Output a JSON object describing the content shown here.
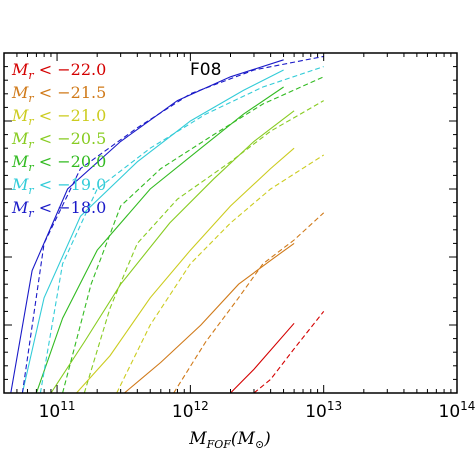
{
  "chart_data": {
    "type": "line",
    "title": "",
    "panel_label": "F08",
    "xlabel": "M_FOF(M_⊙)",
    "ylabel": "",
    "xscale": "log",
    "xlim": [
      40000000000,
      100000000000000
    ],
    "ylim": [
      0,
      1
    ],
    "x_ticks": [
      {
        "value": 100000000000,
        "label": "10^11"
      },
      {
        "value": 1000000000000,
        "label": "10^12"
      },
      {
        "value": 10000000000000,
        "label": "10^13"
      },
      {
        "value": 100000000000000,
        "label": "10^14"
      }
    ],
    "y_tick_labels_visible": false,
    "grid": false,
    "legend_position": "top-left",
    "line_styles": {
      "solid": "model",
      "dashed": "F08"
    },
    "series": [
      {
        "name": "M_r < -22.0",
        "color": "#d40000",
        "solid": {
          "x": [
            2000000000000,
            3000000000000,
            6000000000000
          ],
          "y": [
            0.0,
            0.07,
            0.205
          ]
        },
        "dashed": {
          "x": [
            3000000000000,
            4000000000000,
            6000000000000,
            10000000000000
          ],
          "y": [
            0.0,
            0.04,
            0.13,
            0.24
          ]
        }
      },
      {
        "name": "M_r < -21.5",
        "color": "#d07a1a",
        "solid": {
          "x": [
            320000000000,
            600000000000,
            1200000000000,
            2300000000000,
            4000000000000,
            6000000000000
          ],
          "y": [
            0.0,
            0.09,
            0.2,
            0.32,
            0.39,
            0.44
          ]
        },
        "dashed": {
          "x": [
            750000000000,
            1300000000000,
            2300000000000,
            3500000000000,
            6000000000000,
            10000000000000
          ],
          "y": [
            0.0,
            0.15,
            0.28,
            0.38,
            0.45,
            0.53
          ]
        }
      },
      {
        "name": "M_r < -21.0",
        "color": "#cccc20",
        "solid": {
          "x": [
            140000000000,
            250000000000,
            500000000000,
            1000000000000,
            2000000000000,
            4000000000000,
            6000000000000
          ],
          "y": [
            0.0,
            0.11,
            0.28,
            0.42,
            0.55,
            0.66,
            0.72
          ]
        },
        "dashed": {
          "x": [
            280000000000,
            500000000000,
            1000000000000,
            2000000000000,
            4000000000000,
            10000000000000
          ],
          "y": [
            0.0,
            0.2,
            0.38,
            0.5,
            0.6,
            0.7
          ]
        }
      },
      {
        "name": "M_r < -20.5",
        "color": "#88cc22",
        "solid": {
          "x": [
            90000000000,
            160000000000,
            300000000000,
            700000000000,
            1500000000000,
            3000000000000,
            6000000000000
          ],
          "y": [
            0.0,
            0.15,
            0.32,
            0.5,
            0.63,
            0.74,
            0.83
          ]
        },
        "dashed": {
          "x": [
            160000000000,
            250000000000,
            400000000000,
            800000000000,
            2000000000000,
            4000000000000,
            10000000000000
          ],
          "y": [
            0.0,
            0.25,
            0.44,
            0.57,
            0.68,
            0.77,
            0.86
          ]
        }
      },
      {
        "name": "M_r < -20.0",
        "color": "#33bb22",
        "solid": {
          "x": [
            70000000000,
            110000000000,
            200000000000,
            500000000000,
            1200000000000,
            2500000000000,
            5000000000000
          ],
          "y": [
            0.0,
            0.22,
            0.42,
            0.6,
            0.72,
            0.82,
            0.9
          ]
        },
        "dashed": {
          "x": [
            110000000000,
            180000000000,
            300000000000,
            600000000000,
            1500000000000,
            3500000000000,
            10000000000000
          ],
          "y": [
            0.0,
            0.32,
            0.55,
            0.66,
            0.76,
            0.85,
            0.93
          ]
        }
      },
      {
        "name": "M_r < -19.0",
        "color": "#33ccd8",
        "solid": {
          "x": [
            55000000000,
            80000000000,
            150000000000,
            400000000000,
            1000000000000,
            2500000000000,
            5000000000000
          ],
          "y": [
            0.0,
            0.28,
            0.52,
            0.68,
            0.8,
            0.89,
            0.95
          ]
        },
        "dashed": {
          "x": [
            75000000000,
            110000000000,
            200000000000,
            500000000000,
            1300000000000,
            3500000000000,
            10000000000000
          ],
          "y": [
            0.0,
            0.38,
            0.6,
            0.72,
            0.82,
            0.9,
            0.96
          ]
        }
      },
      {
        "name": "M_r < -18.0",
        "color": "#1a1ac8",
        "solid": {
          "x": [
            45000000000,
            65000000000,
            120000000000,
            300000000000,
            800000000000,
            2000000000000,
            5000000000000
          ],
          "y": [
            0.0,
            0.36,
            0.6,
            0.74,
            0.86,
            0.93,
            0.98
          ]
        },
        "dashed": {
          "x": [
            55000000000,
            80000000000,
            150000000000,
            400000000000,
            1000000000000,
            3000000000000,
            10000000000000
          ],
          "y": [
            0.0,
            0.44,
            0.66,
            0.78,
            0.88,
            0.95,
            0.99
          ]
        }
      }
    ]
  }
}
